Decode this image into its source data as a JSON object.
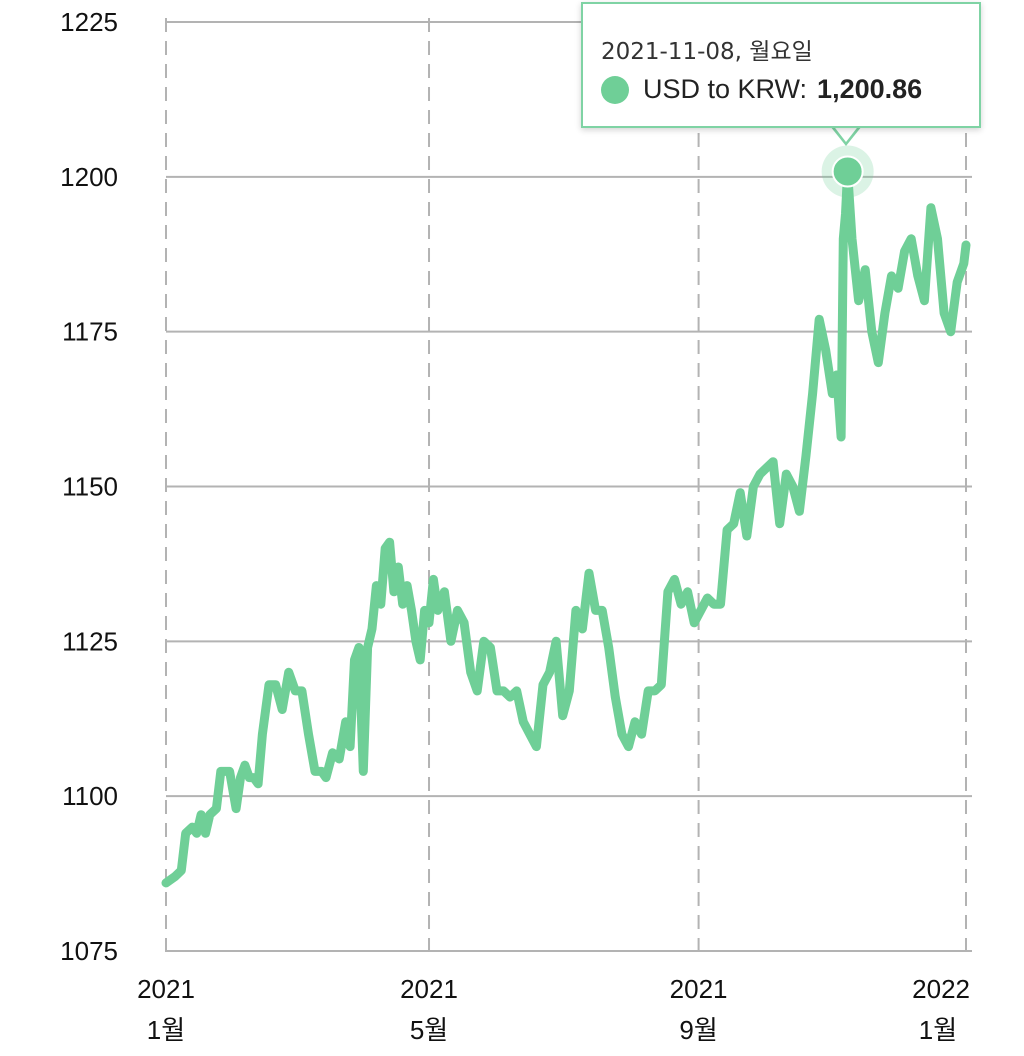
{
  "chart_data": {
    "type": "line",
    "series": [
      {
        "name": "USD to KRW",
        "color": "#6fcf97"
      }
    ],
    "y_ticks": [
      "1225",
      "1200",
      "1175",
      "1150",
      "1125",
      "1100",
      "1075"
    ],
    "ylim": [
      1075,
      1225
    ],
    "x_ticks": [
      {
        "year": "2021",
        "month": "1월",
        "date": "2021-01-01"
      },
      {
        "year": "2021",
        "month": "5월",
        "date": "2021-05-01"
      },
      {
        "year": "2021",
        "month": "9월",
        "date": "2021-09-01"
      },
      {
        "year": "2022",
        "month": "1월",
        "date": "2022-01-01"
      }
    ],
    "points": [
      [
        "2021-01-01",
        1086
      ],
      [
        "2021-01-05",
        1087
      ],
      [
        "2021-01-08",
        1088
      ],
      [
        "2021-01-10",
        1094
      ],
      [
        "2021-01-13",
        1095
      ],
      [
        "2021-01-15",
        1094
      ],
      [
        "2021-01-17",
        1097
      ],
      [
        "2021-01-19",
        1094
      ],
      [
        "2021-01-21",
        1097
      ],
      [
        "2021-01-24",
        1098
      ],
      [
        "2021-01-26",
        1104
      ],
      [
        "2021-01-30",
        1104
      ],
      [
        "2021-02-02",
        1098
      ],
      [
        "2021-02-04",
        1103
      ],
      [
        "2021-02-06",
        1105
      ],
      [
        "2021-02-08",
        1103
      ],
      [
        "2021-02-10",
        1103
      ],
      [
        "2021-02-12",
        1102
      ],
      [
        "2021-02-14",
        1110
      ],
      [
        "2021-02-17",
        1118
      ],
      [
        "2021-02-20",
        1118
      ],
      [
        "2021-02-23",
        1114
      ],
      [
        "2021-02-26",
        1120
      ],
      [
        "2021-03-01",
        1117
      ],
      [
        "2021-03-04",
        1117
      ],
      [
        "2021-03-07",
        1110
      ],
      [
        "2021-03-10",
        1104
      ],
      [
        "2021-03-13",
        1104
      ],
      [
        "2021-03-15",
        1103
      ],
      [
        "2021-03-18",
        1107
      ],
      [
        "2021-03-21",
        1106
      ],
      [
        "2021-03-24",
        1112
      ],
      [
        "2021-03-26",
        1108
      ],
      [
        "2021-03-28",
        1122
      ],
      [
        "2021-03-30",
        1124
      ],
      [
        "2021-04-01",
        1104
      ],
      [
        "2021-04-03",
        1124
      ],
      [
        "2021-04-05",
        1127
      ],
      [
        "2021-04-07",
        1134
      ],
      [
        "2021-04-09",
        1131
      ],
      [
        "2021-04-11",
        1140
      ],
      [
        "2021-04-13",
        1141
      ],
      [
        "2021-04-15",
        1133
      ],
      [
        "2021-04-17",
        1137
      ],
      [
        "2021-04-19",
        1131
      ],
      [
        "2021-04-21",
        1134
      ],
      [
        "2021-04-23",
        1130
      ],
      [
        "2021-04-25",
        1125
      ],
      [
        "2021-04-27",
        1122
      ],
      [
        "2021-04-29",
        1130
      ],
      [
        "2021-05-01",
        1128
      ],
      [
        "2021-05-03",
        1135
      ],
      [
        "2021-05-05",
        1130
      ],
      [
        "2021-05-08",
        1133
      ],
      [
        "2021-05-11",
        1125
      ],
      [
        "2021-05-14",
        1130
      ],
      [
        "2021-05-17",
        1128
      ],
      [
        "2021-05-20",
        1120
      ],
      [
        "2021-05-23",
        1117
      ],
      [
        "2021-05-26",
        1125
      ],
      [
        "2021-05-29",
        1124
      ],
      [
        "2021-06-01",
        1117
      ],
      [
        "2021-06-04",
        1117
      ],
      [
        "2021-06-07",
        1116
      ],
      [
        "2021-06-10",
        1117
      ],
      [
        "2021-06-13",
        1112
      ],
      [
        "2021-06-16",
        1110
      ],
      [
        "2021-06-19",
        1108
      ],
      [
        "2021-06-22",
        1118
      ],
      [
        "2021-06-25",
        1120
      ],
      [
        "2021-06-28",
        1125
      ],
      [
        "2021-07-01",
        1113
      ],
      [
        "2021-07-04",
        1117
      ],
      [
        "2021-07-07",
        1130
      ],
      [
        "2021-07-10",
        1127
      ],
      [
        "2021-07-13",
        1136
      ],
      [
        "2021-07-16",
        1130
      ],
      [
        "2021-07-19",
        1130
      ],
      [
        "2021-07-22",
        1124
      ],
      [
        "2021-07-25",
        1116
      ],
      [
        "2021-07-28",
        1110
      ],
      [
        "2021-07-31",
        1108
      ],
      [
        "2021-08-03",
        1112
      ],
      [
        "2021-08-06",
        1110
      ],
      [
        "2021-08-09",
        1117
      ],
      [
        "2021-08-12",
        1117
      ],
      [
        "2021-08-15",
        1118
      ],
      [
        "2021-08-18",
        1133
      ],
      [
        "2021-08-21",
        1135
      ],
      [
        "2021-08-24",
        1131
      ],
      [
        "2021-08-27",
        1133
      ],
      [
        "2021-08-30",
        1128
      ],
      [
        "2021-09-02",
        1130
      ],
      [
        "2021-09-05",
        1132
      ],
      [
        "2021-09-08",
        1131
      ],
      [
        "2021-09-11",
        1131
      ],
      [
        "2021-09-14",
        1143
      ],
      [
        "2021-09-17",
        1144
      ],
      [
        "2021-09-20",
        1149
      ],
      [
        "2021-09-23",
        1142
      ],
      [
        "2021-09-26",
        1150
      ],
      [
        "2021-09-29",
        1152
      ],
      [
        "2021-10-02",
        1153
      ],
      [
        "2021-10-05",
        1154
      ],
      [
        "2021-10-08",
        1144
      ],
      [
        "2021-10-11",
        1152
      ],
      [
        "2021-10-14",
        1150
      ],
      [
        "2021-10-17",
        1146
      ],
      [
        "2021-10-20",
        1155
      ],
      [
        "2021-10-23",
        1165
      ],
      [
        "2021-10-26",
        1177
      ],
      [
        "2021-10-29",
        1172
      ],
      [
        "2021-11-01",
        1165
      ],
      [
        "2021-11-03",
        1168
      ],
      [
        "2021-11-05",
        1158
      ],
      [
        "2021-11-06",
        1190
      ],
      [
        "2021-11-07",
        1194
      ],
      [
        "2021-11-08",
        1200.86
      ],
      [
        "2021-11-10",
        1190
      ],
      [
        "2021-11-13",
        1180
      ],
      [
        "2021-11-16",
        1185
      ],
      [
        "2021-11-19",
        1175
      ],
      [
        "2021-11-22",
        1170
      ],
      [
        "2021-11-25",
        1178
      ],
      [
        "2021-11-28",
        1184
      ],
      [
        "2021-12-01",
        1182
      ],
      [
        "2021-12-04",
        1188
      ],
      [
        "2021-12-07",
        1190
      ],
      [
        "2021-12-10",
        1184
      ],
      [
        "2021-12-13",
        1180
      ],
      [
        "2021-12-16",
        1195
      ],
      [
        "2021-12-19",
        1190
      ],
      [
        "2021-12-22",
        1178
      ],
      [
        "2021-12-25",
        1175
      ],
      [
        "2021-12-28",
        1183
      ],
      [
        "2021-12-31",
        1186
      ],
      [
        "2022-01-01",
        1189
      ]
    ]
  },
  "tooltip": {
    "date": "2021-11-08, 월요일",
    "label": "USD to KRW:",
    "value": "1,200.86",
    "point_date": "2021-11-08",
    "point_value": 1200.86
  }
}
